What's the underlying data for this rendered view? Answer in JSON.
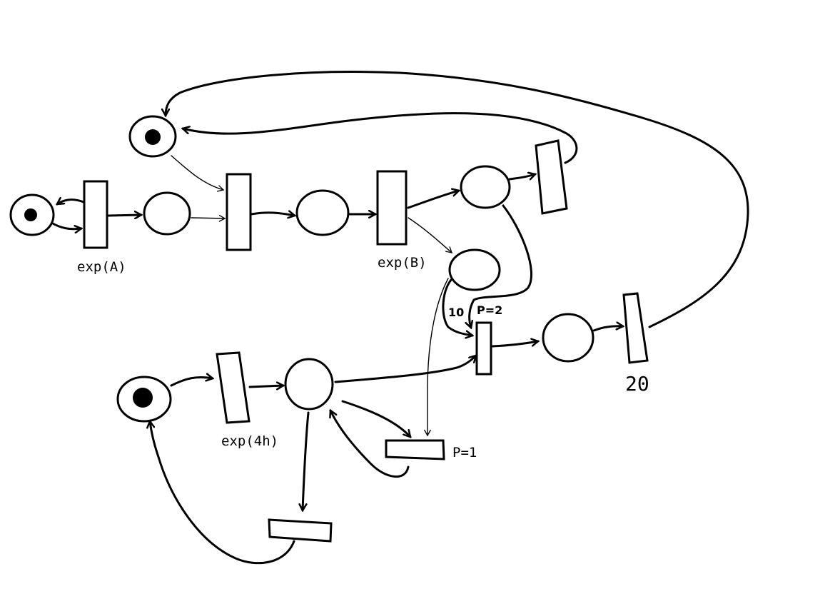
{
  "diagram": {
    "labels": {
      "t_exp_a": "exp(A)",
      "t_exp_b": "exp(B)",
      "t_exp_4h": "exp(4h)",
      "t_20": "20",
      "arc_weight_10": "10",
      "p_2": "P=2",
      "p_1": "P=1"
    },
    "colors": {
      "ink": "#000000",
      "paper": "#ffffff"
    }
  }
}
